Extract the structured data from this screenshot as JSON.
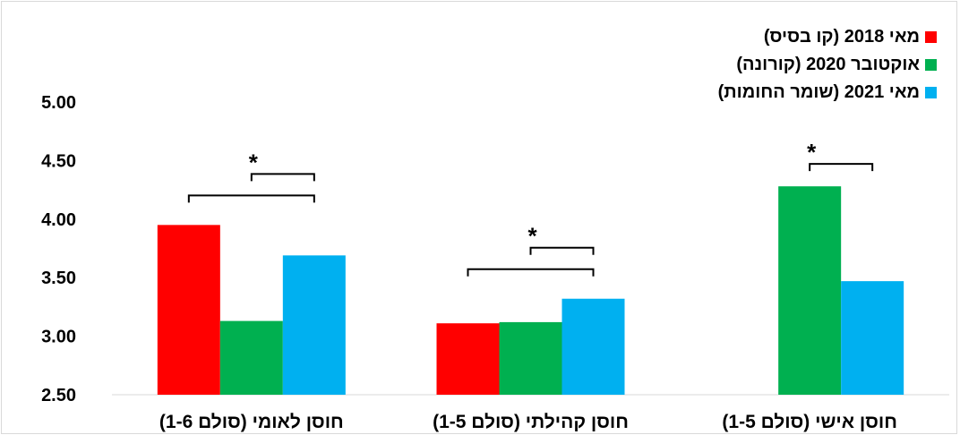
{
  "chart_data": {
    "type": "bar",
    "title": "",
    "xlabel": "",
    "ylabel": "",
    "ylim": [
      2.5,
      5.0
    ],
    "yticks": [
      "2.50",
      "3.00",
      "3.50",
      "4.00",
      "4.50",
      "5.00"
    ],
    "grid": false,
    "legend_position": "top-right",
    "categories": [
      "חוסן לאומי (סולם 1-6)",
      "חוסן קהילתי (סולם 1-5)",
      "חוסן אישי (סולם 1-5)"
    ],
    "series": [
      {
        "name": "מאי 2018 (קו בסיס)",
        "color": "#ff0000",
        "values": [
          3.95,
          3.11,
          null
        ]
      },
      {
        "name": "אוקטובר 2020 (קורונה)",
        "color": "#00b050",
        "values": [
          3.13,
          3.12,
          4.28
        ]
      },
      {
        "name": "מאי 2021 (שומר החומות)",
        "color": "#00b0f0",
        "values": [
          3.69,
          3.32,
          3.47
        ]
      }
    ],
    "significance": [
      {
        "category": 0,
        "from_series": 0,
        "to_series": 2,
        "label": ""
      },
      {
        "category": 0,
        "from_series": 1,
        "to_series": 2,
        "label": "*"
      },
      {
        "category": 1,
        "from_series": 0,
        "to_series": 2,
        "label": ""
      },
      {
        "category": 1,
        "from_series": 1,
        "to_series": 2,
        "label": "*"
      },
      {
        "category": 2,
        "from_series": 1,
        "to_series": 2,
        "label": "*"
      }
    ]
  }
}
